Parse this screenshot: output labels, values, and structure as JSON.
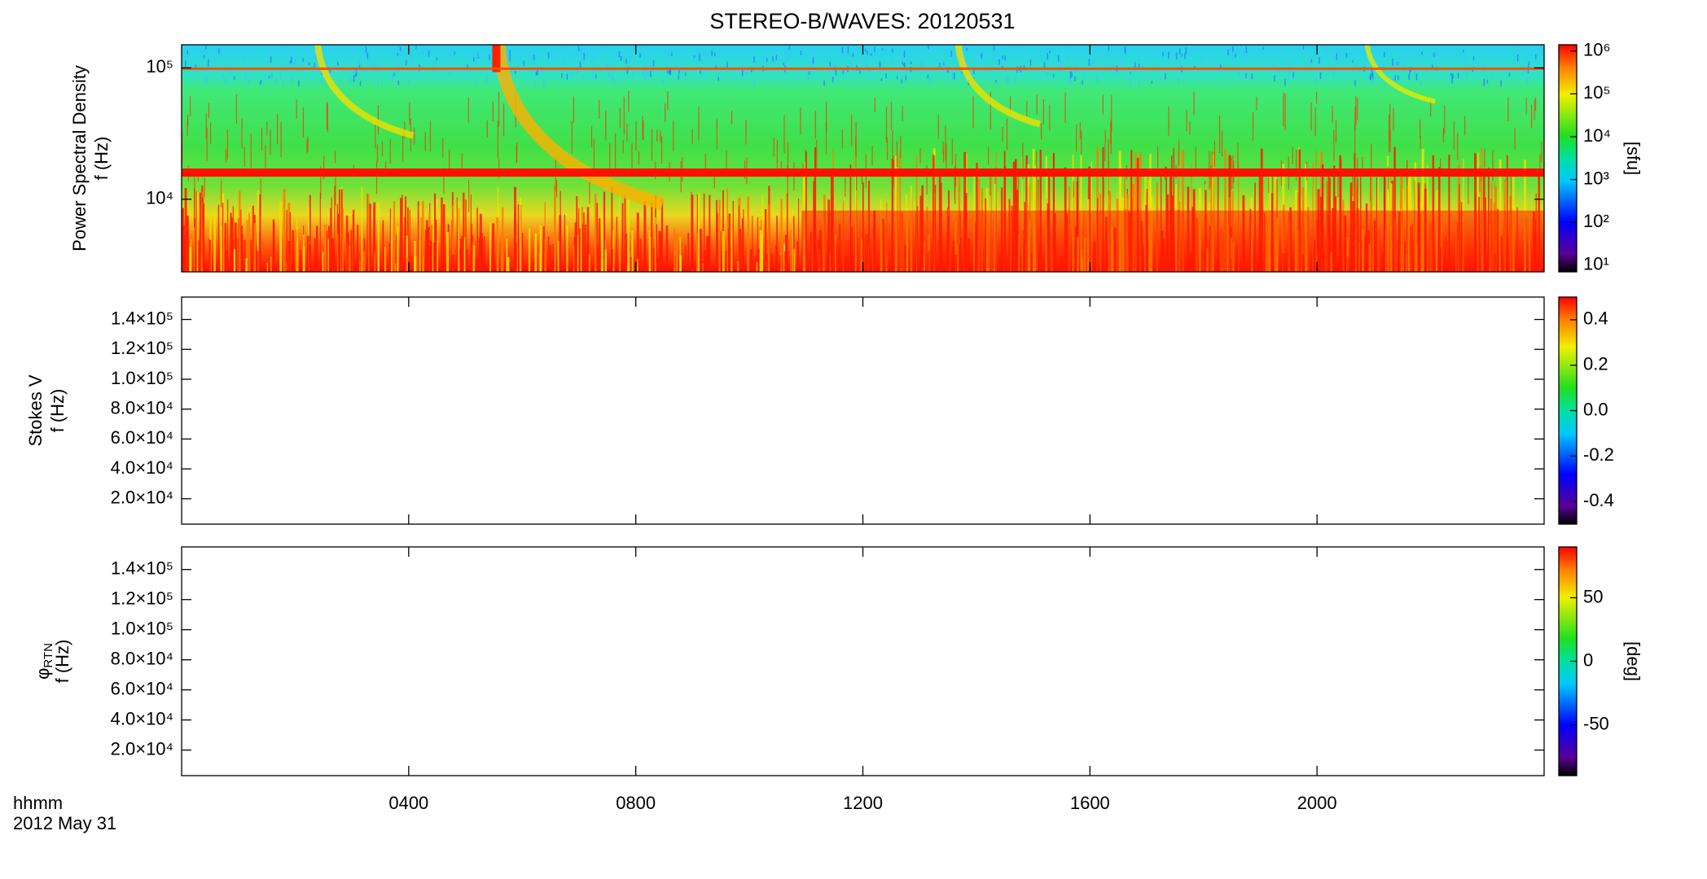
{
  "chart_data": [
    {
      "type": "spectrogram",
      "title": "STEREO-B/WAVES: 20120531",
      "ylabel": [
        "Power Spectral Density",
        "f (Hz)"
      ],
      "ylog": true,
      "ylim": [
        2800,
        150000
      ],
      "yticks": [
        {
          "value": 10000,
          "label": "10⁴"
        },
        {
          "value": 100000,
          "label": "10⁵"
        }
      ],
      "colorbar": {
        "label": "[sfu]",
        "log": true,
        "lim": [
          7,
          1400000
        ],
        "ticks": [
          {
            "value": 10,
            "label": "10¹"
          },
          {
            "value": 100,
            "label": "10²"
          },
          {
            "value": 1000,
            "label": "10³"
          },
          {
            "value": 10000,
            "label": "10⁴"
          },
          {
            "value": 100000,
            "label": "10⁵"
          },
          {
            "value": 1000000,
            "label": "10⁶"
          }
        ]
      }
    },
    {
      "type": "spectrogram",
      "ylabel": [
        "Stokes V",
        "f (Hz)"
      ],
      "ylim": [
        3000,
        155000
      ],
      "yticks": [
        {
          "value": 20000,
          "label": "2.0×10⁴"
        },
        {
          "value": 40000,
          "label": "4.0×10⁴"
        },
        {
          "value": 60000,
          "label": "6.0×10⁴"
        },
        {
          "value": 80000,
          "label": "8.0×10⁴"
        },
        {
          "value": 100000,
          "label": "1.0×10⁵"
        },
        {
          "value": 120000,
          "label": "1.2×10⁵"
        },
        {
          "value": 140000,
          "label": "1.4×10⁵"
        }
      ],
      "colorbar": {
        "lim": [
          -0.5,
          0.5
        ],
        "ticks": [
          -0.4,
          -0.2,
          {
            "value": 0,
            "label": "0.0"
          },
          0.2,
          0.4
        ]
      }
    },
    {
      "type": "spectrogram",
      "ylabel": [
        "φ",
        "f (Hz)"
      ],
      "ylabel_subscript": "RTN",
      "ylim": [
        3000,
        155000
      ],
      "yticks": [
        {
          "value": 20000,
          "label": "2.0×10⁴"
        },
        {
          "value": 40000,
          "label": "4.0×10⁴"
        },
        {
          "value": 60000,
          "label": "6.0×10⁴"
        },
        {
          "value": 80000,
          "label": "8.0×10⁴"
        },
        {
          "value": 100000,
          "label": "1.0×10⁵"
        },
        {
          "value": 120000,
          "label": "1.2×10⁵"
        },
        {
          "value": 140000,
          "label": "1.4×10⁵"
        }
      ],
      "colorbar": {
        "label": "[deg]",
        "lim": [
          -90,
          90
        ],
        "ticks": [
          -50,
          0,
          50
        ]
      },
      "xlabel": "hhmm",
      "date": "2012 May 31",
      "xlim": [
        0,
        24
      ],
      "xticks": [
        {
          "value": 4,
          "label": "0400"
        },
        {
          "value": 8,
          "label": "0800"
        },
        {
          "value": 12,
          "label": "1200"
        },
        {
          "value": 16,
          "label": "1600"
        },
        {
          "value": 20,
          "label": "2000"
        }
      ]
    }
  ]
}
